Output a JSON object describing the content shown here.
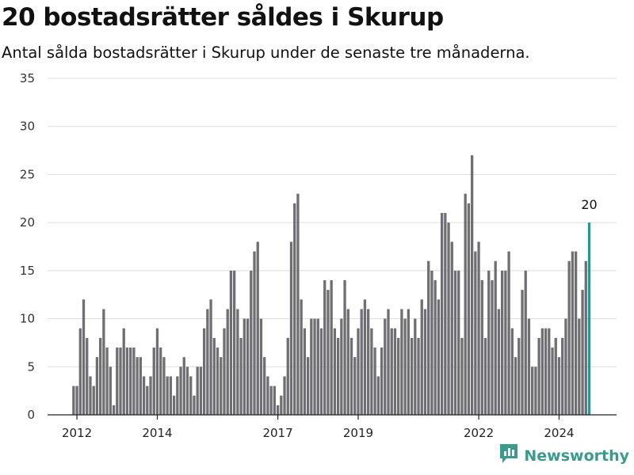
{
  "title": "20 bostadsrätter såldes i Skurup",
  "subtitle": "Antal sålda bostadsrätter i Skurup under de senaste tre månaderna.",
  "brand": "Newsworthy",
  "colors": {
    "bar": "#6f6e73",
    "highlight": "#1a9a98",
    "grid": "#dddddd",
    "axis": "#222222",
    "brand": "#3a9a8c"
  },
  "chart_data": {
    "type": "bar",
    "ylim": [
      0,
      35
    ],
    "yticks": [
      0,
      5,
      10,
      15,
      20,
      25,
      30,
      35
    ],
    "xtick_labels": [
      "2012",
      "2014",
      "2017",
      "2019",
      "2022",
      "2024"
    ],
    "xtick_positions": [
      1,
      25,
      61,
      85,
      121,
      145
    ],
    "grid": true,
    "series": [
      {
        "values": [
          3,
          3,
          9,
          12,
          8,
          4,
          3,
          6,
          8,
          11,
          7,
          5,
          1,
          7,
          7,
          9,
          7,
          7,
          7,
          6,
          6,
          4,
          3,
          4,
          7,
          9,
          7,
          6,
          4,
          4,
          2,
          4,
          5,
          6,
          5,
          4,
          2,
          5,
          5,
          9,
          11,
          12,
          8,
          7,
          6,
          9,
          11,
          15,
          15,
          11,
          8,
          10,
          10,
          15,
          17,
          18,
          10,
          6,
          4,
          3,
          3,
          1,
          2,
          4,
          8,
          18,
          22,
          23,
          12,
          9,
          6,
          10,
          10,
          10,
          9,
          14,
          13,
          14,
          9,
          8,
          10,
          14,
          11,
          8,
          6,
          9,
          11,
          12,
          11,
          9,
          7,
          4,
          7,
          10,
          11,
          9,
          9,
          8,
          11,
          10,
          11,
          8,
          10,
          8,
          12,
          11,
          16,
          15,
          14,
          12,
          21,
          21,
          20,
          18,
          15,
          15,
          8,
          23,
          22,
          27,
          17,
          18,
          14,
          8,
          15,
          14,
          16,
          11,
          15,
          15,
          17,
          9,
          6,
          8,
          13,
          15,
          10,
          5,
          5,
          8,
          9,
          9,
          9,
          7,
          8,
          6,
          8,
          10,
          16,
          17,
          17,
          10,
          13,
          16,
          20
        ]
      }
    ],
    "highlight": {
      "index": 154,
      "value": 20,
      "label": "20"
    }
  }
}
